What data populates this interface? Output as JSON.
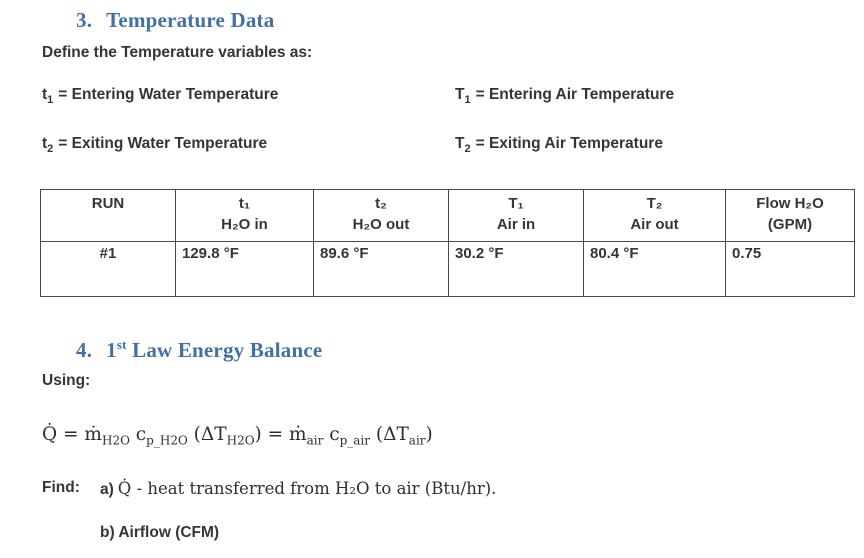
{
  "colors": {
    "heading_blue": "#4170a4",
    "body_text": "#353535",
    "table_border": "#4a4a4a",
    "background": "#ffffff"
  },
  "section3": {
    "number": "3.",
    "title": "Temperature Data",
    "intro": "Define the Temperature variables as:",
    "definitions": [
      {
        "symbol": "t",
        "subscript": "1",
        "definition": "= Entering Water Temperature"
      },
      {
        "symbol": "T",
        "subscript": "1",
        "definition": "= Entering Air Temperature"
      },
      {
        "symbol": "t",
        "subscript": "2",
        "definition": "= Exiting Water Temperature"
      },
      {
        "symbol": "T",
        "subscript": "2",
        "definition": "= Exiting Air Temperature"
      }
    ]
  },
  "data_table": {
    "headers": [
      {
        "line1": "RUN",
        "line2": ""
      },
      {
        "line1": "t₁",
        "line2": "H₂O in"
      },
      {
        "line1": "t₂",
        "line2": "H₂O out"
      },
      {
        "line1": "T₁",
        "line2": "Air in"
      },
      {
        "line1": "T₂",
        "line2": "Air out"
      },
      {
        "line1": "Flow H₂O",
        "line2": "(GPM)"
      }
    ],
    "rows": [
      [
        "#1",
        "129.8 °F",
        "89.6 °F",
        "30.2 °F",
        "80.4 °F",
        "0.75"
      ]
    ]
  },
  "section4": {
    "number": "4.",
    "title_pre": "1",
    "title_sup": "st",
    "title_post": " Law Energy Balance",
    "using_label": "Using:",
    "equation_segments": [
      {
        "text": "Q̇ = ṁ"
      },
      {
        "sub": "H2O"
      },
      {
        "text": " c"
      },
      {
        "sub": "p_H2O"
      },
      {
        "text": " (ΔT"
      },
      {
        "sub": "H2O"
      },
      {
        "text": ") = ṁ"
      },
      {
        "sub": "air"
      },
      {
        "text": " c"
      },
      {
        "sub": "p_air"
      },
      {
        "text": " (ΔT"
      },
      {
        "sub": "air"
      },
      {
        "text": ")"
      }
    ],
    "find_label": "Find:",
    "item_a_marker": "a)",
    "item_a_text": "Q̇ - heat transferred from H₂O to air (Btu/hr).",
    "item_b": "b) Airflow (CFM)"
  }
}
